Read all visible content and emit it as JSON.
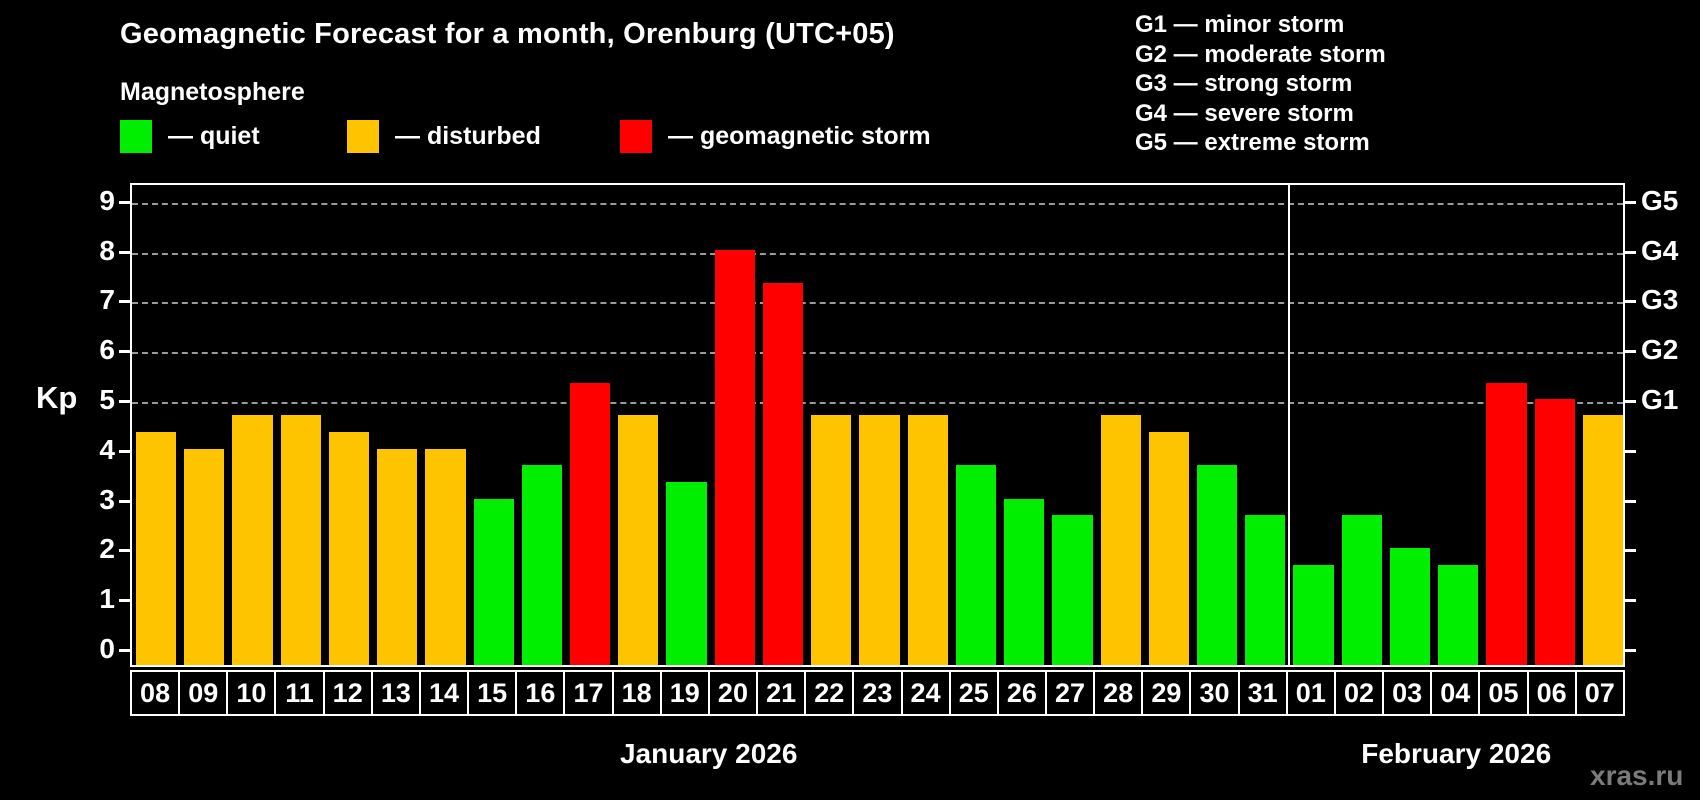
{
  "header": {
    "title": "Geomagnetic Forecast for a month, Orenburg (UTC+05)",
    "subtitle": "Magnetosphere",
    "legend": [
      {
        "status": "quiet",
        "label": "— quiet"
      },
      {
        "status": "disturbed",
        "label": "— disturbed"
      },
      {
        "status": "storm",
        "label": "— geomagnetic storm"
      }
    ],
    "g_scale_legend": [
      "G1 — minor storm",
      "G2 — moderate storm",
      "G3 — strong storm",
      "G4 — severe storm",
      "G5 — extreme storm"
    ]
  },
  "chart_data": {
    "type": "bar",
    "title": "Geomagnetic Forecast for a month, Orenburg (UTC+05)",
    "ylabel": "Kp",
    "ylim": [
      0,
      9.4
    ],
    "grid": "dashed horizontal lines at Kp 5,6,7,8,9",
    "legend_position": "top",
    "left_tick_labels": [
      "0",
      "1",
      "2",
      "3",
      "4",
      "5",
      "6",
      "7",
      "8",
      "9"
    ],
    "right_tick_labels": [
      {
        "kp": 5,
        "label": "G1"
      },
      {
        "kp": 6,
        "label": "G2"
      },
      {
        "kp": 7,
        "label": "G3"
      },
      {
        "kp": 8,
        "label": "G4"
      },
      {
        "kp": 9,
        "label": "G5"
      }
    ],
    "colors": {
      "quiet": "#00ee00",
      "disturbed": "#ffc400",
      "storm": "#ff0000"
    },
    "months": [
      {
        "label": "January 2026",
        "days": [
          {
            "date": "08",
            "kp": 4.33,
            "status": "disturbed"
          },
          {
            "date": "09",
            "kp": 4.0,
            "status": "disturbed"
          },
          {
            "date": "10",
            "kp": 4.67,
            "status": "disturbed"
          },
          {
            "date": "11",
            "kp": 4.67,
            "status": "disturbed"
          },
          {
            "date": "12",
            "kp": 4.33,
            "status": "disturbed"
          },
          {
            "date": "13",
            "kp": 4.0,
            "status": "disturbed"
          },
          {
            "date": "14",
            "kp": 4.0,
            "status": "disturbed"
          },
          {
            "date": "15",
            "kp": 3.0,
            "status": "quiet"
          },
          {
            "date": "16",
            "kp": 3.67,
            "status": "quiet"
          },
          {
            "date": "17",
            "kp": 5.33,
            "status": "storm"
          },
          {
            "date": "18",
            "kp": 4.67,
            "status": "disturbed"
          },
          {
            "date": "19",
            "kp": 3.33,
            "status": "quiet"
          },
          {
            "date": "20",
            "kp": 8.0,
            "status": "storm"
          },
          {
            "date": "21",
            "kp": 7.33,
            "status": "storm"
          },
          {
            "date": "22",
            "kp": 4.67,
            "status": "disturbed"
          },
          {
            "date": "23",
            "kp": 4.67,
            "status": "disturbed"
          },
          {
            "date": "24",
            "kp": 4.67,
            "status": "disturbed"
          },
          {
            "date": "25",
            "kp": 3.67,
            "status": "quiet"
          },
          {
            "date": "26",
            "kp": 3.0,
            "status": "quiet"
          },
          {
            "date": "27",
            "kp": 2.67,
            "status": "quiet"
          },
          {
            "date": "28",
            "kp": 4.67,
            "status": "disturbed"
          },
          {
            "date": "29",
            "kp": 4.33,
            "status": "disturbed"
          },
          {
            "date": "30",
            "kp": 3.67,
            "status": "quiet"
          },
          {
            "date": "31",
            "kp": 2.67,
            "status": "quiet"
          }
        ]
      },
      {
        "label": "February 2026",
        "days": [
          {
            "date": "01",
            "kp": 1.67,
            "status": "quiet"
          },
          {
            "date": "02",
            "kp": 2.67,
            "status": "quiet"
          },
          {
            "date": "03",
            "kp": 2.0,
            "status": "quiet"
          },
          {
            "date": "04",
            "kp": 1.67,
            "status": "quiet"
          },
          {
            "date": "05",
            "kp": 5.33,
            "status": "storm"
          },
          {
            "date": "06",
            "kp": 5.0,
            "status": "storm"
          },
          {
            "date": "07",
            "kp": 4.67,
            "status": "disturbed"
          }
        ]
      }
    ]
  },
  "watermark": "xras.ru"
}
